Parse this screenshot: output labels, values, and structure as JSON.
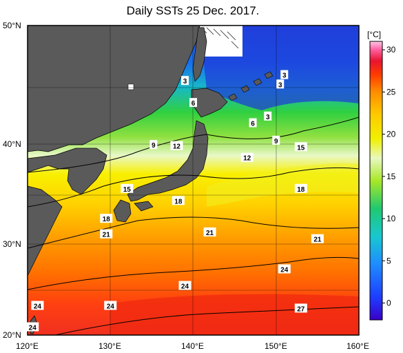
{
  "title": "Daily SSTs 25 Dec. 2017.",
  "axes": {
    "lat_labels": [
      "50°N",
      "40°N",
      "30°N",
      "20°N"
    ],
    "lon_labels": [
      "120°E",
      "130°E",
      "140°E",
      "150°E",
      "160°E"
    ],
    "lat_range": [
      20,
      50
    ],
    "lon_range": [
      120,
      160
    ],
    "grid": true
  },
  "colorbar": {
    "unit": "[°C]",
    "ticks": [
      "30",
      "25",
      "20",
      "15",
      "10",
      "5",
      "0"
    ],
    "range": [
      -2,
      31
    ],
    "colors": [
      "#3a00c8",
      "#1e3cff",
      "#1e8cff",
      "#18c8d0",
      "#20c870",
      "#30d830",
      "#a8e828",
      "#f0f000",
      "#ffc800",
      "#ff8c00",
      "#ff3c00",
      "#e81430",
      "#ff60a0",
      "#ffc8e8"
    ]
  },
  "contour_labels": [
    {
      "text": "3",
      "lon": 139.0,
      "lat": 45.5
    },
    {
      "text": "6",
      "lon": 140.0,
      "lat": 43.6
    },
    {
      "text": "3",
      "lon": 151.0,
      "lat": 46.0
    },
    {
      "text": "3",
      "lon": 150.5,
      "lat": 45.2
    },
    {
      "text": "3",
      "lon": 149.0,
      "lat": 42.4
    },
    {
      "text": "6",
      "lon": 147.2,
      "lat": 41.8
    },
    {
      "text": "9",
      "lon": 135.2,
      "lat": 39.8
    },
    {
      "text": "12",
      "lon": 138.0,
      "lat": 39.7
    },
    {
      "text": "9",
      "lon": 150.0,
      "lat": 40.2
    },
    {
      "text": "15",
      "lon": 153.0,
      "lat": 39.6
    },
    {
      "text": "12",
      "lon": 146.5,
      "lat": 38.6
    },
    {
      "text": "15",
      "lon": 132.0,
      "lat": 35.6
    },
    {
      "text": "18",
      "lon": 153.0,
      "lat": 35.6
    },
    {
      "text": "18",
      "lon": 138.2,
      "lat": 34.4
    },
    {
      "text": "18",
      "lon": 129.5,
      "lat": 32.6
    },
    {
      "text": "21",
      "lon": 129.5,
      "lat": 31.0
    },
    {
      "text": "21",
      "lon": 142.0,
      "lat": 31.2
    },
    {
      "text": "21",
      "lon": 155.0,
      "lat": 30.5
    },
    {
      "text": "24",
      "lon": 151.0,
      "lat": 27.3
    },
    {
      "text": "24",
      "lon": 139.0,
      "lat": 25.5
    },
    {
      "text": "24",
      "lon": 121.2,
      "lat": 23.3
    },
    {
      "text": "24",
      "lon": 130.0,
      "lat": 23.3
    },
    {
      "text": "27",
      "lon": 153.0,
      "lat": 23.0
    },
    {
      "text": "24",
      "lon": 120.6,
      "lat": 20.9
    }
  ]
}
